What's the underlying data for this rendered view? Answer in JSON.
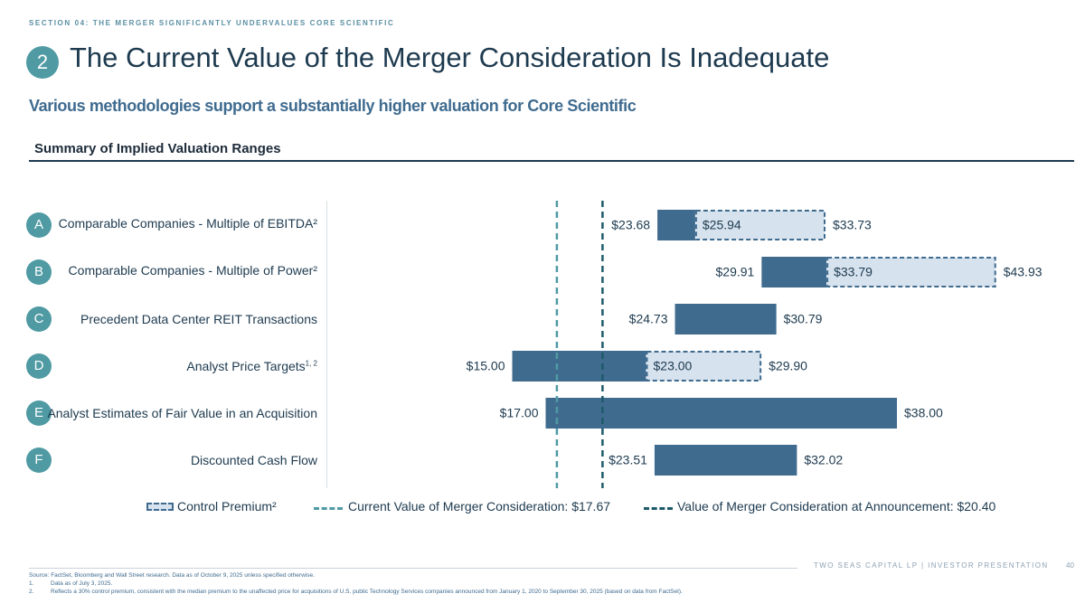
{
  "header": {
    "section_label": "SECTION 04: THE MERGER SIGNIFICANTLY UNDERVALUES CORE SCIENTIFIC",
    "badge": "2",
    "title": "The Current Value of the Merger Consideration Is Inadequate",
    "subtitle": "Various methodologies support a substantially higher valuation for Core Scientific",
    "summary_title": "Summary of Implied Valuation Ranges"
  },
  "rows": [
    {
      "letter": "A",
      "label": "Comparable Companies - Multiple of EBITDA²",
      "sup": ""
    },
    {
      "letter": "B",
      "label": "Comparable Companies - Multiple of Power²",
      "sup": ""
    },
    {
      "letter": "C",
      "label": "Precedent Data Center REIT Transactions",
      "sup": ""
    },
    {
      "letter": "D",
      "label": "Analyst Price Targets",
      "sup": "1, 2"
    },
    {
      "letter": "E",
      "label": "Analyst Estimates of Fair Value in an Acquisition",
      "sup": ""
    },
    {
      "letter": "F",
      "label": "Discounted Cash Flow",
      "sup": ""
    }
  ],
  "chart_data": {
    "type": "bar",
    "orientation": "horizontal-range",
    "categories": [
      "Comparable Companies - Multiple of EBITDA²",
      "Comparable Companies - Multiple of Power²",
      "Precedent Data Center REIT Transactions",
      "Analyst Price Targets¹, ²",
      "Analyst Estimates of Fair Value in an Acquisition",
      "Discounted Cash Flow"
    ],
    "ranges": [
      {
        "low": 23.68,
        "high": 25.94,
        "premium_high": 33.73,
        "low_label": "$23.68",
        "mid_label": "$25.94",
        "high_label": "$33.73"
      },
      {
        "low": 29.91,
        "high": 33.79,
        "premium_high": 43.93,
        "low_label": "$29.91",
        "mid_label": "$33.79",
        "high_label": "$43.93"
      },
      {
        "low": 24.73,
        "high": 30.79,
        "premium_high": null,
        "low_label": "$24.73",
        "mid_label": "",
        "high_label": "$30.79"
      },
      {
        "low": 15.0,
        "high": 23.0,
        "premium_high": 29.9,
        "low_label": "$15.00",
        "mid_label": "$23.00",
        "high_label": "$29.90"
      },
      {
        "low": 17.0,
        "high": 38.0,
        "premium_high": null,
        "low_label": "$17.00",
        "mid_label": "",
        "high_label": "$38.00"
      },
      {
        "low": 23.51,
        "high": 32.02,
        "premium_high": null,
        "low_label": "$23.51",
        "mid_label": "",
        "high_label": "$32.02"
      }
    ],
    "reference_lines": [
      {
        "name": "Current Value of Merger Consideration: $17.67",
        "value": 17.67,
        "color": "#4f9aa3"
      },
      {
        "name": "Value of Merger Consideration at Announcement: $20.40",
        "value": 20.4,
        "color": "#1d5a6a"
      }
    ],
    "xlim": [
      6.0,
      46.0
    ],
    "colors": {
      "bar": "#3f6b8f",
      "premium_fill": "#d6e2ee",
      "premium_border": "#3f6b8f"
    }
  },
  "legend": {
    "premium": "Control Premium²",
    "current": "Current Value of Merger Consideration: $17.67",
    "announcement": "Value of Merger Consideration at Announcement: $20.40"
  },
  "footer": {
    "brand": "TWO SEAS CAPITAL LP   |   INVESTOR PRESENTATION",
    "page": "40",
    "source": "Source:  FactSet, Bloomberg and Wall Street research. Data as of October 9, 2025 unless specified otherwise.",
    "note1_num": "1.",
    "note1": "Data as of July 3, 2025.",
    "note2_num": "2.",
    "note2": "Reflects a 30% control premium, consistent with the median premium to the unaffected price for acquisitions of U.S. public Technology Services companies announced from January 1, 2020 to September 30, 2025 (based on data from FactSet)."
  }
}
